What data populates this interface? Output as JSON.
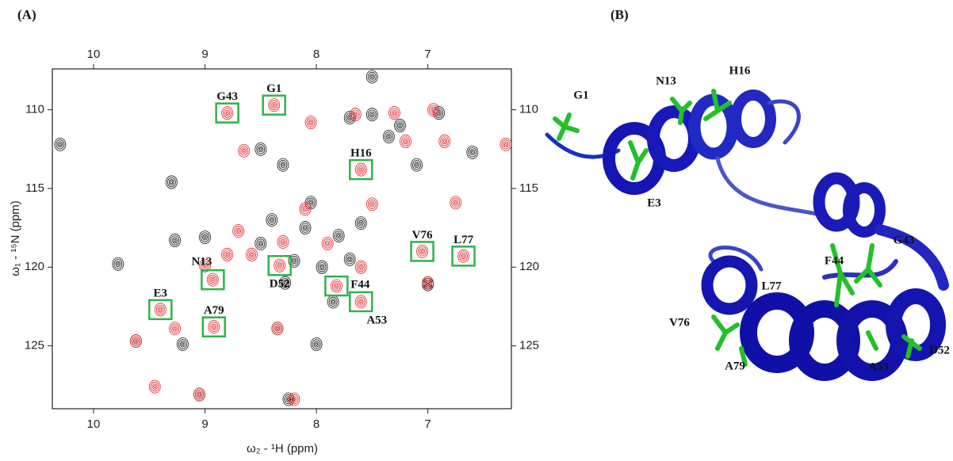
{
  "chart_data": {
    "type": "scatter",
    "panel_label": "(A)",
    "x_label": "ω₂ - ¹H (ppm)",
    "y_label": "ω₁ - ¹⁵N (ppm)",
    "xlim": [
      10.37,
      6.25
    ],
    "ylim": [
      107.4,
      129
    ],
    "xticks": [
      10,
      9,
      8,
      7
    ],
    "yticks": [
      110,
      115,
      120,
      125
    ],
    "box_color": "#2db34a",
    "series": [
      {
        "color": "#111111",
        "x": [
          10.3,
          9.3,
          9.27,
          9.0,
          9.05,
          8.25,
          8.0,
          8.35,
          7.5,
          7.8,
          8.5,
          8.3,
          7.1,
          6.6,
          7.0,
          7.85,
          8.4,
          8.1,
          7.6,
          8.2,
          7.95,
          7.7,
          7.7,
          7.5,
          7.25,
          6.9,
          9.78,
          9.2,
          9.62,
          8.28,
          7.35,
          8.5,
          8.05
        ],
        "values": [
          112.2,
          114.6,
          118.3,
          118.1,
          128.1,
          128.4,
          124.9,
          123.9,
          107.9,
          118.0,
          112.5,
          113.5,
          113.5,
          112.7,
          121.1,
          122.2,
          117.0,
          117.5,
          117.2,
          119.6,
          120.0,
          119.5,
          110.5,
          110.3,
          111.0,
          110.2,
          119.8,
          124.9,
          124.7,
          121.0,
          111.7,
          118.5,
          115.9
        ]
      },
      {
        "color": "#e02020",
        "x": [
          8.8,
          8.38,
          7.6,
          7.05,
          6.68,
          8.93,
          8.33,
          7.82,
          7.6,
          9.4,
          8.92,
          9.45,
          9.62,
          6.75,
          6.3,
          7.0,
          8.7,
          8.58,
          9.0,
          8.8,
          8.1,
          7.5,
          7.9,
          8.3,
          7.6,
          7.2,
          8.05,
          7.65,
          9.27,
          8.35,
          8.2,
          9.05,
          6.95,
          7.3,
          6.85,
          8.65
        ],
        "values": [
          110.2,
          109.7,
          113.8,
          119.0,
          119.3,
          120.8,
          119.9,
          121.2,
          122.2,
          122.7,
          123.8,
          127.6,
          124.7,
          115.9,
          112.2,
          121.0,
          117.7,
          119.2,
          119.9,
          119.2,
          116.3,
          116.0,
          118.5,
          118.4,
          120.0,
          112.0,
          110.8,
          110.3,
          123.9,
          123.9,
          128.4,
          128.1,
          110.0,
          110.2,
          112.0,
          112.6
        ]
      }
    ],
    "assigned": {
      "labels": [
        "G43",
        "G1",
        "H16",
        "V76",
        "L77",
        "N13",
        "D52",
        "F44",
        "A53",
        "E3",
        "A79"
      ],
      "x": [
        8.8,
        8.38,
        7.6,
        7.05,
        6.68,
        8.93,
        8.33,
        7.82,
        7.6,
        9.4,
        8.92
      ],
      "values": [
        110.2,
        109.7,
        113.8,
        119.0,
        119.3,
        120.8,
        119.9,
        121.2,
        122.2,
        122.7,
        123.8
      ]
    }
  },
  "structure": {
    "panel_label": "(B)",
    "labels": [
      "G1",
      "N13",
      "H16",
      "E3",
      "G43",
      "F44",
      "L77",
      "V76",
      "A79",
      "A53",
      "D52"
    ]
  }
}
